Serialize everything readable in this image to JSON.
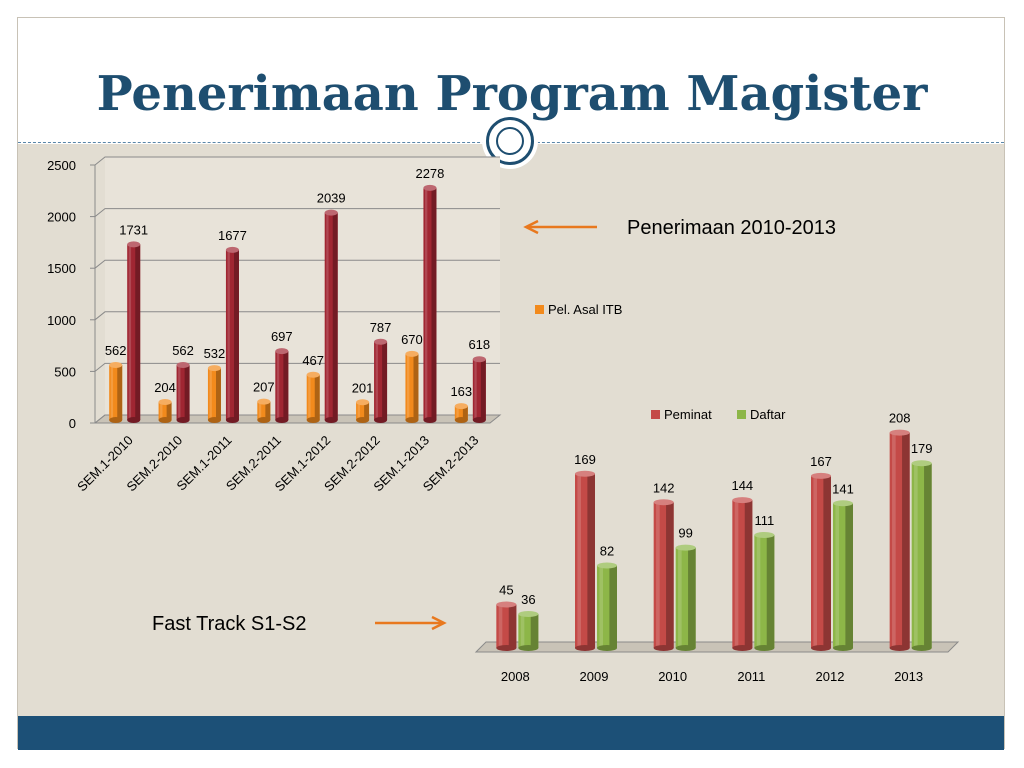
{
  "slide": {
    "title": "Penerimaan Program Magister",
    "label_top": "Penerimaan 2010-2013",
    "label_bottom": "Fast Track S1-S2",
    "accent_color": "#1e4e70",
    "footer_color": "#1c5077",
    "arrow_color": "#e8781e"
  },
  "chart_data": [
    {
      "type": "bar",
      "title": "",
      "categories": [
        "SEM.1-2010",
        "SEM.2-2010",
        "SEM.1-2011",
        "SEM.2-2011",
        "SEM.1-2012",
        "SEM.2-2012",
        "SEM.1-2013",
        "SEM.2-2013"
      ],
      "series": [
        {
          "name": "Pel. Asal ITB",
          "color": "#f28a1c",
          "values": [
            562,
            204,
            532,
            207,
            467,
            201,
            670,
            163
          ]
        },
        {
          "name": "",
          "color": "#a02632",
          "values": [
            1731,
            562,
            1677,
            697,
            2039,
            787,
            2278,
            618
          ]
        }
      ],
      "yticks": [
        "0",
        "500",
        "1000",
        "1500",
        "2000",
        "2500"
      ],
      "ylim": [
        0,
        2500
      ],
      "grid": true,
      "legend_position": "right"
    },
    {
      "type": "bar",
      "title": "",
      "categories": [
        "2008",
        "2009",
        "2010",
        "2011",
        "2012",
        "2013"
      ],
      "series": [
        {
          "name": "Peminat",
          "color": "#c44a47",
          "values": [
            45,
            169,
            142,
            144,
            167,
            208
          ]
        },
        {
          "name": "Daftar",
          "color": "#8db648",
          "values": [
            36,
            82,
            99,
            111,
            141,
            179
          ]
        }
      ],
      "ylim": [
        0,
        220
      ],
      "grid": false,
      "legend_position": "top"
    }
  ]
}
